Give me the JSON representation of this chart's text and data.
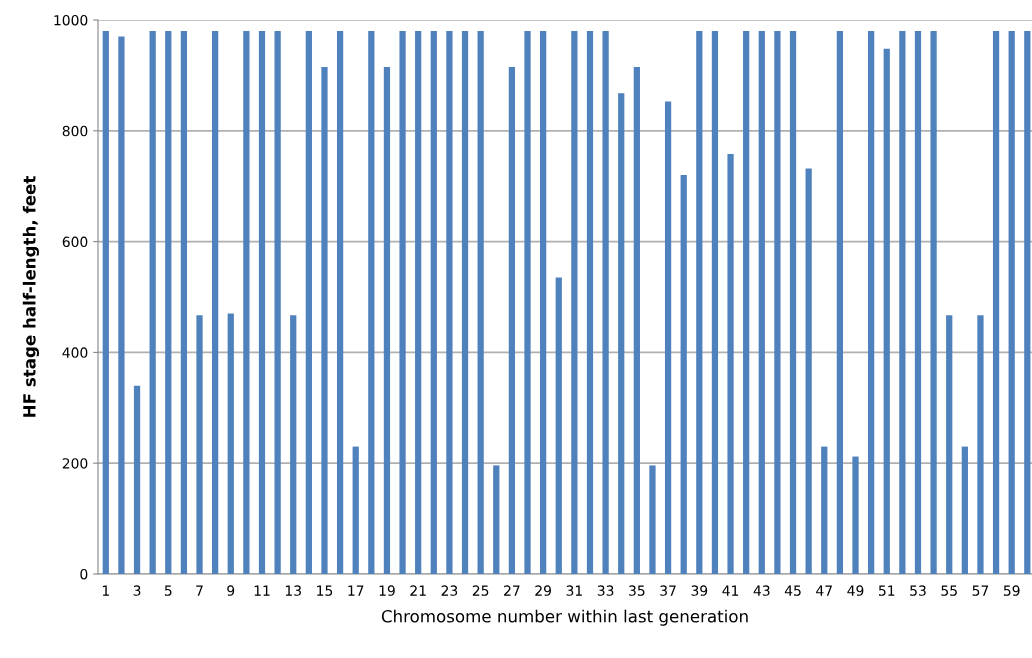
{
  "chart_data": {
    "type": "bar",
    "xlabel": "Chromosome number within last generation",
    "ylabel": "HF stage half-length, feet",
    "categories": [
      "1",
      null,
      "3",
      null,
      "5",
      null,
      "7",
      null,
      "9",
      null,
      "11",
      null,
      "13",
      null,
      "15",
      null,
      "17",
      null,
      "19",
      null,
      "21",
      null,
      "23",
      null,
      "25",
      null,
      "27",
      null,
      "29",
      null,
      "31",
      null,
      "33",
      null,
      "35",
      null,
      "37",
      null,
      "39",
      null,
      "41",
      null,
      "43",
      null,
      "45",
      null,
      "47",
      null,
      "49",
      null,
      "51",
      null,
      "53",
      null,
      "55",
      null,
      "57",
      null,
      "59",
      null
    ],
    "values": [
      980,
      970,
      340,
      980,
      980,
      980,
      467,
      980,
      470,
      980,
      980,
      980,
      467,
      980,
      915,
      980,
      230,
      980,
      915,
      980,
      980,
      980,
      980,
      980,
      980,
      196,
      915,
      980,
      980,
      535,
      980,
      980,
      980,
      868,
      915,
      196,
      853,
      720,
      980,
      980,
      758,
      980,
      980,
      980,
      980,
      732,
      230,
      980,
      212,
      980,
      948,
      980,
      980,
      980,
      467,
      230,
      467,
      980,
      980,
      980
    ],
    "color": "#4f81bd",
    "ylim": [
      0,
      1000
    ],
    "yticks": [
      0,
      200,
      400,
      600,
      800,
      1000
    ],
    "grid": "y"
  }
}
